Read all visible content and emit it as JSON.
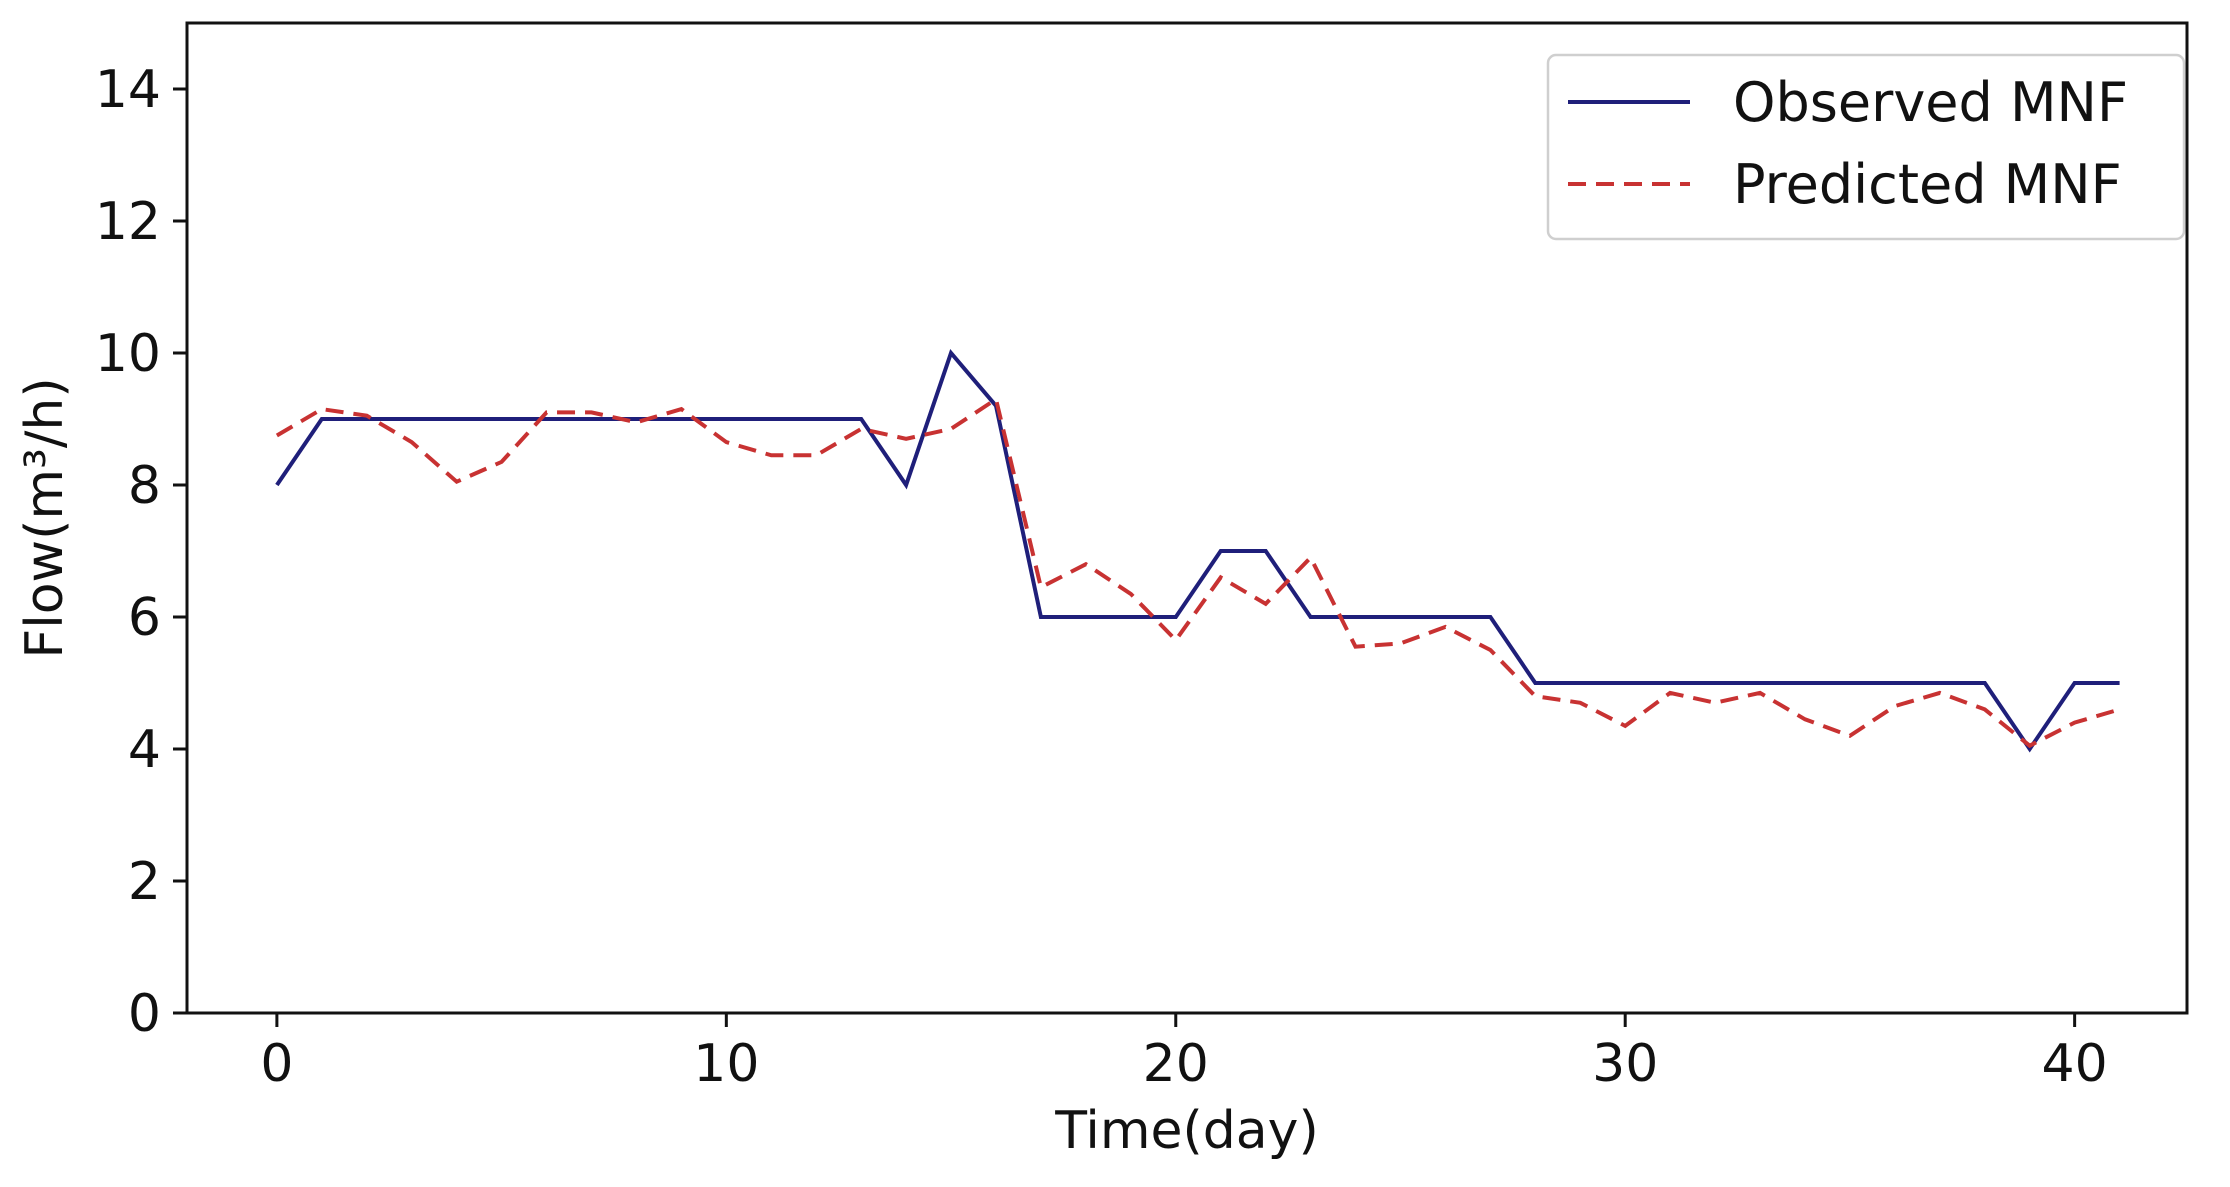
{
  "chart_data": {
    "type": "line",
    "title": "",
    "xlabel": "Time(day)",
    "ylabel": "Flow(m³/h)",
    "xlim": [
      -2,
      42.5
    ],
    "ylim": [
      0,
      15
    ],
    "xticks": [
      0,
      10,
      20,
      30,
      40
    ],
    "yticks": [
      0,
      2,
      4,
      6,
      8,
      10,
      12,
      14
    ],
    "grid": false,
    "legend_position": "top-right",
    "x": [
      0,
      1,
      2,
      3,
      4,
      5,
      6,
      7,
      8,
      9,
      10,
      11,
      12,
      13,
      14,
      15,
      16,
      17,
      18,
      19,
      20,
      21,
      22,
      23,
      24,
      25,
      26,
      27,
      28,
      29,
      30,
      31,
      32,
      33,
      34,
      35,
      36,
      37,
      38,
      39,
      40,
      41
    ],
    "series": [
      {
        "name": "Observed MNF",
        "color": "#1f1f7a",
        "style": "solid",
        "values": [
          8,
          9,
          9,
          9,
          9,
          9,
          9,
          9,
          9,
          9,
          9,
          9,
          9,
          9,
          8,
          10,
          9.2,
          6,
          6,
          6,
          6,
          7,
          7,
          6,
          6,
          6,
          6,
          6,
          5,
          5,
          5,
          5,
          5,
          5,
          5,
          5,
          5,
          5,
          5,
          4,
          5,
          5
        ]
      },
      {
        "name": "Predicted MNF",
        "color": "#c83232",
        "style": "dashed",
        "values": [
          8.75,
          9.15,
          9.05,
          8.65,
          8.05,
          8.35,
          9.1,
          9.1,
          8.95,
          9.15,
          8.65,
          8.45,
          8.45,
          8.85,
          8.7,
          8.85,
          9.3,
          6.45,
          6.8,
          6.35,
          5.65,
          6.6,
          6.2,
          6.9,
          5.55,
          5.6,
          5.85,
          5.5,
          4.8,
          4.7,
          4.35,
          4.85,
          4.7,
          4.85,
          4.45,
          4.2,
          4.65,
          4.85,
          4.6,
          4.05,
          4.4,
          4.6
        ]
      }
    ]
  }
}
